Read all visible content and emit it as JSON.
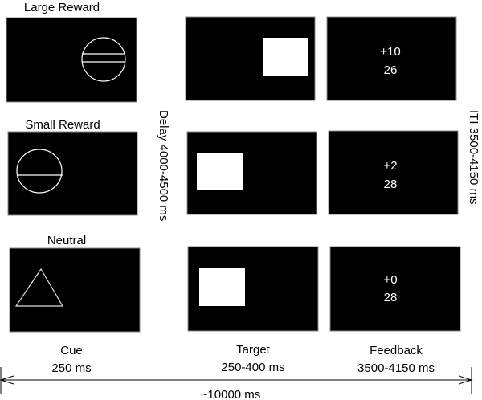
{
  "conditions": [
    {
      "label": "Large Reward",
      "feedback_gain": "+10",
      "feedback_total": "26"
    },
    {
      "label": "Small Reward",
      "feedback_gain": "+2",
      "feedback_total": "28"
    },
    {
      "label": "Neutral",
      "feedback_gain": "+0",
      "feedback_total": "28"
    }
  ],
  "phases": [
    {
      "name": "Cue",
      "duration": "250 ms"
    },
    {
      "name": "Target",
      "duration": "250-400 ms"
    },
    {
      "name": "Feedback",
      "duration": "3500-4150 ms"
    }
  ],
  "delay_label": "Delay 4000-4500 ms",
  "iti_label": "ITI 3500-4150 ms",
  "total_label": "~10000 ms",
  "colors": {
    "screen": "#000000",
    "stimulus": "#ffffff",
    "background": "#ffffff"
  }
}
